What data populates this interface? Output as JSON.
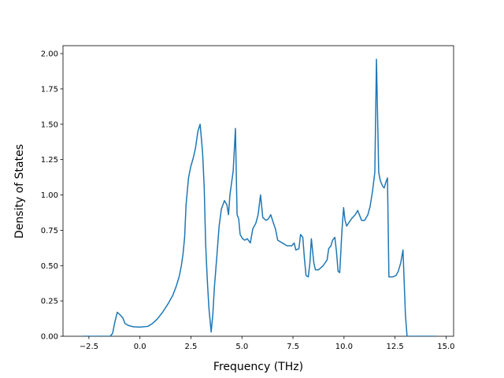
{
  "chart_data": {
    "type": "line",
    "x_label": "Frequency (THz)",
    "y_label": "Density of States",
    "x": [
      -2.8,
      -1.46,
      -1.34,
      -1.23,
      -1.11,
      -0.96,
      -0.84,
      -0.73,
      -0.54,
      -0.31,
      0,
      0.38,
      0.61,
      0.84,
      1.11,
      1.38,
      1.61,
      1.77,
      1.92,
      2.03,
      2.11,
      2.19,
      2.26,
      2.38,
      2.49,
      2.61,
      2.72,
      2.84,
      2.95,
      3.07,
      3.15,
      3.22,
      3.3,
      3.38,
      3.49,
      3.57,
      3.65,
      3.76,
      3.88,
      3.99,
      4.14,
      4.26,
      4.34,
      4.41,
      4.57,
      4.68,
      4.76,
      4.84,
      4.91,
      5.03,
      5.14,
      5.26,
      5.41,
      5.53,
      5.68,
      5.79,
      5.91,
      6.02,
      6.18,
      6.29,
      6.41,
      6.52,
      6.64,
      6.75,
      6.98,
      7.21,
      7.44,
      7.56,
      7.64,
      7.79,
      7.87,
      7.98,
      8.06,
      8.14,
      8.25,
      8.33,
      8.4,
      8.52,
      8.6,
      8.75,
      8.98,
      9.17,
      9.25,
      9.36,
      9.44,
      9.55,
      9.63,
      9.71,
      9.79,
      9.9,
      9.98,
      10.05,
      10.13,
      10.36,
      10.55,
      10.67,
      10.78,
      10.86,
      11.01,
      11.17,
      11.28,
      11.4,
      11.51,
      11.59,
      11.7,
      11.78,
      11.9,
      11.97,
      12.05,
      12.13,
      12.2,
      12.39,
      12.55,
      12.66,
      12.78,
      12.89,
      13.01,
      13.09,
      14.47
    ],
    "series": [
      {
        "name": "Density of States",
        "color": "#1f77b4",
        "values": [
          0,
          0,
          0.02,
          0.1,
          0.17,
          0.15,
          0.13,
          0.09,
          0.075,
          0.067,
          0.065,
          0.07,
          0.09,
          0.12,
          0.17,
          0.23,
          0.29,
          0.35,
          0.42,
          0.5,
          0.58,
          0.7,
          0.93,
          1.12,
          1.2,
          1.26,
          1.33,
          1.45,
          1.5,
          1.3,
          1.05,
          0.65,
          0.4,
          0.2,
          0.03,
          0.15,
          0.35,
          0.55,
          0.78,
          0.9,
          0.96,
          0.93,
          0.86,
          1.0,
          1.17,
          1.47,
          0.86,
          0.83,
          0.72,
          0.69,
          0.68,
          0.69,
          0.66,
          0.76,
          0.8,
          0.86,
          1.0,
          0.84,
          0.82,
          0.83,
          0.86,
          0.81,
          0.76,
          0.68,
          0.66,
          0.64,
          0.64,
          0.66,
          0.61,
          0.62,
          0.72,
          0.7,
          0.55,
          0.43,
          0.42,
          0.52,
          0.69,
          0.52,
          0.47,
          0.47,
          0.5,
          0.54,
          0.62,
          0.64,
          0.68,
          0.7,
          0.6,
          0.46,
          0.45,
          0.75,
          0.91,
          0.82,
          0.78,
          0.83,
          0.86,
          0.89,
          0.85,
          0.82,
          0.82,
          0.86,
          0.92,
          1.03,
          1.16,
          1.96,
          1.16,
          1.1,
          1.06,
          1.05,
          1.09,
          1.12,
          0.42,
          0.42,
          0.43,
          0.46,
          0.52,
          0.61,
          0.15,
          0,
          0
        ]
      }
    ],
    "xlim": [
      -3.77,
      15.37
    ],
    "ylim": [
      0,
      2.056
    ],
    "xticks": [
      {
        "value": -2.5,
        "label": "−2.5"
      },
      {
        "value": 0,
        "label": "0.0"
      },
      2.5,
      {
        "value": 5,
        "label": "5.0"
      },
      7.5,
      {
        "value": 10,
        "label": "10.0"
      },
      12.5,
      {
        "value": 15,
        "label": "15.0"
      }
    ],
    "yticks": [
      {
        "value": 0,
        "label": "0.00"
      },
      {
        "value": 0.25,
        "label": "0.25"
      },
      {
        "value": 0.5,
        "label": "0.50"
      },
      {
        "value": 0.75,
        "label": "0.75"
      },
      {
        "value": 1,
        "label": "1.00"
      },
      {
        "value": 1.25,
        "label": "1.25"
      },
      {
        "value": 1.5,
        "label": "1.50"
      },
      {
        "value": 1.75,
        "label": "1.75"
      },
      {
        "value": 2,
        "label": "2.00"
      }
    ]
  }
}
